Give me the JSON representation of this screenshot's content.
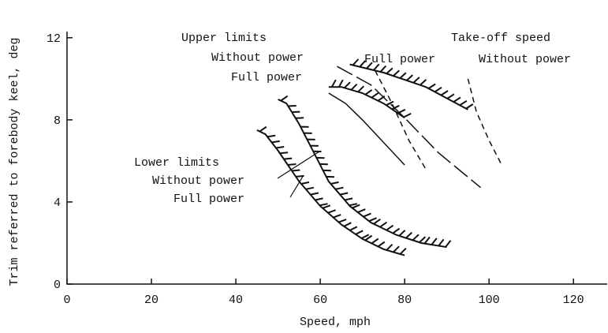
{
  "chart_data": {
    "type": "line",
    "xlabel": "Speed, mph",
    "ylabel": "Trim referred to forebody keel, deg",
    "xlim": [
      0,
      128
    ],
    "ylim": [
      0,
      12.3
    ],
    "xticks": [
      0,
      20,
      40,
      60,
      80,
      100,
      120
    ],
    "yticks": [
      0,
      4,
      8,
      12
    ],
    "annotations": [
      "Upper limits",
      "Without power",
      "Full power",
      "Take-off speed",
      "Full power",
      "Without power",
      "Lower limits",
      "Without power",
      "Full power"
    ],
    "series": [
      {
        "style": "hatched",
        "color": "#111",
        "x": [
          67,
          75,
          85,
          95
        ],
        "values": [
          10.7,
          10.3,
          9.6,
          8.5
        ]
      },
      {
        "style": "hatched",
        "color": "#111",
        "x": [
          62,
          65,
          70,
          75,
          80
        ],
        "values": [
          9.6,
          9.6,
          9.3,
          8.8,
          8.1
        ]
      },
      {
        "style": "hatched",
        "color": "#111",
        "x": [
          50,
          52,
          55,
          58,
          62,
          67,
          72,
          78,
          84,
          90
        ],
        "values": [
          9.0,
          8.8,
          7.8,
          6.6,
          5.0,
          3.8,
          3.0,
          2.4,
          2.0,
          1.8
        ]
      },
      {
        "style": "hatched",
        "color": "#111",
        "x": [
          45,
          47,
          50,
          55,
          60,
          65,
          70,
          75,
          80
        ],
        "values": [
          7.5,
          7.3,
          6.5,
          5.0,
          3.8,
          2.9,
          2.2,
          1.7,
          1.4
        ]
      },
      {
        "style": "solid",
        "color": "#111",
        "x": [
          62,
          66,
          70,
          75,
          80
        ],
        "values": [
          9.3,
          8.8,
          8.0,
          6.9,
          5.8
        ]
      },
      {
        "style": "longdash",
        "color": "#111",
        "x": [
          64,
          72,
          80,
          88,
          98
        ],
        "values": [
          10.6,
          9.7,
          8.1,
          6.4,
          4.7
        ]
      },
      {
        "style": "dashed",
        "color": "#111",
        "x": [
          73,
          77,
          81,
          85
        ],
        "values": [
          10.4,
          8.8,
          7.0,
          5.6
        ]
      },
      {
        "style": "dashed",
        "color": "#111",
        "x": [
          95,
          97,
          100,
          103
        ],
        "values": [
          10.0,
          8.4,
          7.0,
          5.8
        ]
      }
    ]
  }
}
